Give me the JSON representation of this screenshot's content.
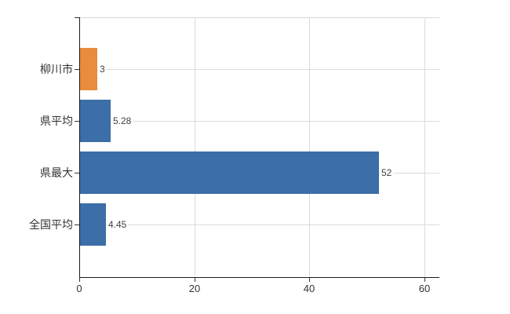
{
  "chart_data": {
    "type": "bar",
    "orientation": "horizontal",
    "title": "",
    "xlabel": "",
    "ylabel": "",
    "categories": [
      "柳川市",
      "県平均",
      "県最大",
      "全国平均"
    ],
    "values": [
      3,
      5.28,
      52,
      4.45
    ],
    "value_labels": [
      "3",
      "5.28",
      "52",
      "4.45"
    ],
    "series": [
      {
        "name": "",
        "values": [
          3,
          5.28,
          52,
          4.45
        ]
      }
    ],
    "x_ticks": [
      0,
      20,
      40,
      60
    ],
    "x_tick_labels": [
      "0",
      "20",
      "40",
      "60"
    ],
    "xlim": [
      0,
      62.6
    ],
    "grid": true,
    "legend": null,
    "bar_colors": [
      "#E98C3C",
      "#3C6EA8",
      "#3C6EA8",
      "#3C6EA8"
    ]
  },
  "colors": {
    "highlight_bar": "#E98C3C",
    "default_bar": "#3C6EA8",
    "gridline": "#DCDCDC",
    "axis": "#1A1A1A",
    "text": "#333333"
  }
}
